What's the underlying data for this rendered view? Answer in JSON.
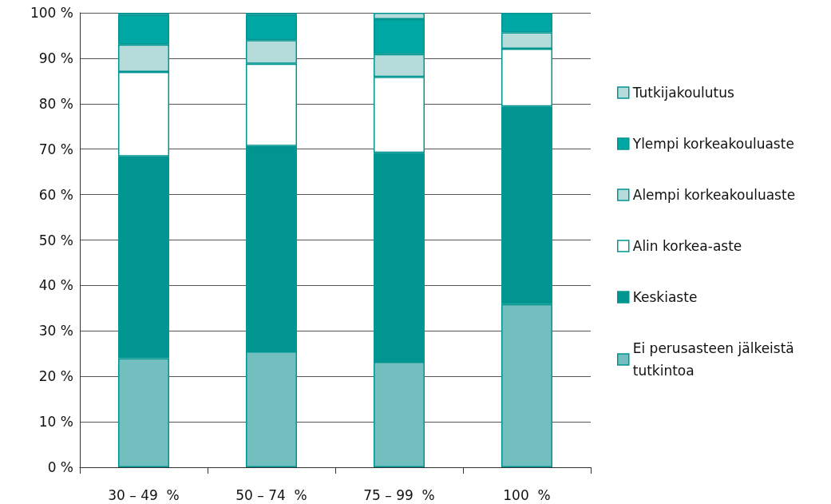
{
  "chart_data": {
    "type": "bar",
    "stacked": true,
    "categories": [
      "30 – 49  %",
      "50 – 74  %",
      "75 – 99  %",
      "100  %"
    ],
    "series": [
      {
        "name": "Ei perusasteen jälkeistä tutkintoa",
        "color": "#73bfbf",
        "values": [
          24,
          25.5,
          23.2,
          35.9
        ]
      },
      {
        "name": "Keskiaste",
        "color": "#009590",
        "values": [
          44.4,
          45.2,
          46,
          43.5
        ]
      },
      {
        "name": "Alin korkea-aste",
        "color": "#ffffff",
        "values": [
          18.6,
          18.1,
          16.7,
          12.7
        ]
      },
      {
        "name": "Alempi korkeakouluaste",
        "color": "#b5dcdb",
        "values": [
          6,
          5.2,
          5,
          3.6
        ]
      },
      {
        "name": "Ylempi korkeakouluaste",
        "color": "#00a8a5",
        "values": [
          6.5,
          5.5,
          7.7,
          4.3
        ]
      },
      {
        "name": "Tutkijakoulutus",
        "color": "#b5dcdb",
        "values": [
          0.5,
          0.5,
          1.4,
          0
        ]
      }
    ],
    "ylim": [
      0,
      100
    ],
    "yticks": [
      {
        "value": 0,
        "label": "0 %"
      },
      {
        "value": 10,
        "label": "10 %"
      },
      {
        "value": 20,
        "label": "20 %"
      },
      {
        "value": 30,
        "label": "30 %"
      },
      {
        "value": 40,
        "label": "40 %"
      },
      {
        "value": 50,
        "label": "50 %"
      },
      {
        "value": 60,
        "label": "60 %"
      },
      {
        "value": 70,
        "label": "70 %"
      },
      {
        "value": 80,
        "label": "80 %"
      },
      {
        "value": 90,
        "label": "90 %"
      },
      {
        "value": 100,
        "label": "100 %"
      }
    ],
    "grid": "y",
    "legend": "right"
  }
}
